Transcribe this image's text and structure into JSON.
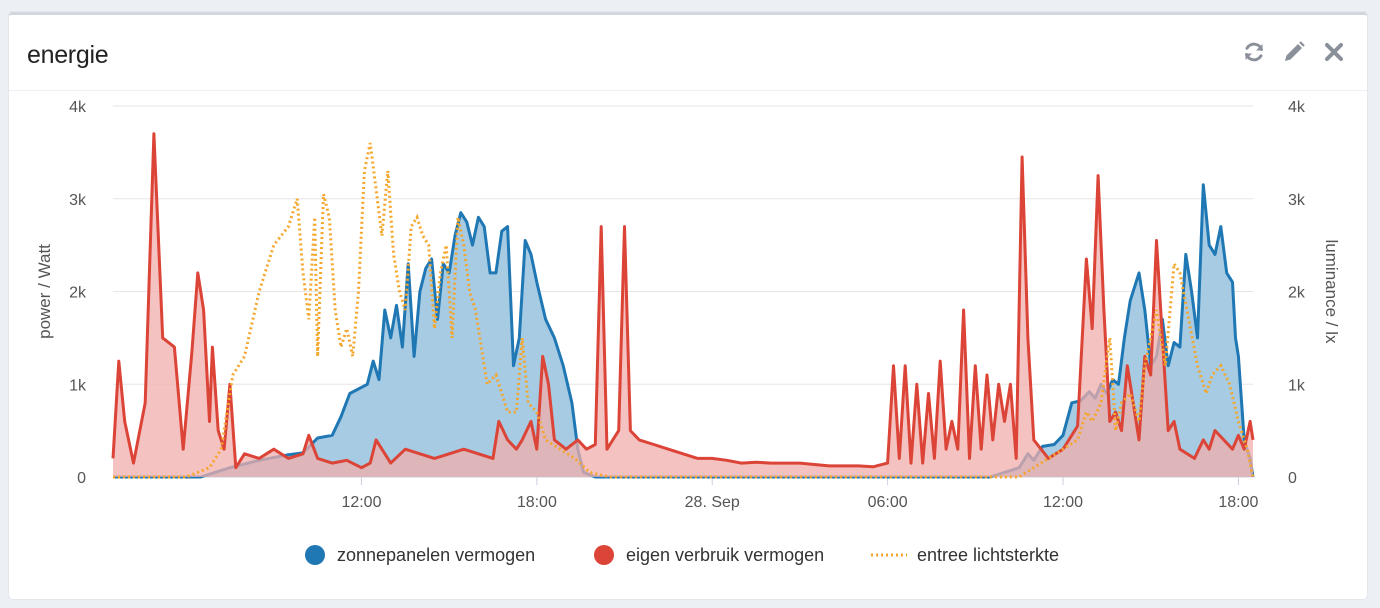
{
  "widget": {
    "title": "energie",
    "tools": [
      "refresh-icon",
      "pencil-icon",
      "close-icon"
    ]
  },
  "chart_data": {
    "type": "area",
    "x_tick_labels": [
      "12:00",
      "18:00",
      "28. Sep",
      "06:00",
      "12:00",
      "18:00"
    ],
    "x_tick_hours": [
      12,
      18,
      24,
      30,
      36,
      42
    ],
    "x_range_hours": [
      3.5,
      42.5
    ],
    "left_axis": {
      "title": "power / Watt",
      "range": [
        0,
        4000
      ],
      "ticks": [
        "0",
        "1k",
        "2k",
        "3k",
        "4k"
      ]
    },
    "right_axis": {
      "title": "luminance / lx",
      "range": [
        0,
        4000
      ],
      "ticks": [
        "0",
        "1k",
        "2k",
        "3k",
        "4k"
      ]
    },
    "grid": true,
    "legend_position": "bottom",
    "series": [
      {
        "name": "zonnepanelen vermogen",
        "color": "#1f77b4",
        "fill": "#a6cbe3",
        "style": "area",
        "axis": "left",
        "points": [
          [
            3.5,
            0
          ],
          [
            5.0,
            0
          ],
          [
            6.5,
            0
          ],
          [
            7.5,
            100
          ],
          [
            8.5,
            180
          ],
          [
            9.5,
            240
          ],
          [
            10.0,
            260
          ],
          [
            10.5,
            420
          ],
          [
            11.0,
            450
          ],
          [
            11.3,
            650
          ],
          [
            11.6,
            900
          ],
          [
            11.9,
            950
          ],
          [
            12.2,
            1000
          ],
          [
            12.4,
            1250
          ],
          [
            12.6,
            1050
          ],
          [
            12.8,
            1800
          ],
          [
            13.0,
            1500
          ],
          [
            13.2,
            1850
          ],
          [
            13.4,
            1400
          ],
          [
            13.6,
            2300
          ],
          [
            13.8,
            1300
          ],
          [
            14.0,
            2000
          ],
          [
            14.2,
            2250
          ],
          [
            14.4,
            2350
          ],
          [
            14.6,
            1700
          ],
          [
            14.8,
            2300
          ],
          [
            15.0,
            2200
          ],
          [
            15.2,
            2600
          ],
          [
            15.4,
            2850
          ],
          [
            15.6,
            2750
          ],
          [
            15.8,
            2500
          ],
          [
            16.0,
            2800
          ],
          [
            16.2,
            2700
          ],
          [
            16.4,
            2200
          ],
          [
            16.6,
            2200
          ],
          [
            16.8,
            2650
          ],
          [
            17.0,
            2700
          ],
          [
            17.2,
            1200
          ],
          [
            17.4,
            1500
          ],
          [
            17.6,
            2550
          ],
          [
            17.8,
            2400
          ],
          [
            18.0,
            2100
          ],
          [
            18.3,
            1700
          ],
          [
            18.6,
            1500
          ],
          [
            18.9,
            1200
          ],
          [
            19.2,
            800
          ],
          [
            19.4,
            300
          ],
          [
            19.6,
            50
          ],
          [
            20.0,
            0
          ],
          [
            22.0,
            0
          ],
          [
            25.0,
            0
          ],
          [
            28.0,
            0
          ],
          [
            31.0,
            0
          ],
          [
            33.5,
            0
          ],
          [
            34.5,
            100
          ],
          [
            34.8,
            250
          ],
          [
            35.0,
            180
          ],
          [
            35.3,
            330
          ],
          [
            35.7,
            350
          ],
          [
            36.0,
            450
          ],
          [
            36.3,
            800
          ],
          [
            36.6,
            820
          ],
          [
            36.9,
            920
          ],
          [
            37.1,
            850
          ],
          [
            37.3,
            1000
          ],
          [
            37.5,
            900
          ],
          [
            37.7,
            1050
          ],
          [
            37.9,
            1000
          ],
          [
            38.1,
            1500
          ],
          [
            38.3,
            1900
          ],
          [
            38.6,
            2200
          ],
          [
            38.8,
            1800
          ],
          [
            39.0,
            1200
          ],
          [
            39.2,
            1300
          ],
          [
            39.4,
            1700
          ],
          [
            39.6,
            1200
          ],
          [
            39.8,
            1450
          ],
          [
            40.0,
            1400
          ],
          [
            40.2,
            2400
          ],
          [
            40.4,
            2000
          ],
          [
            40.6,
            1500
          ],
          [
            40.8,
            3150
          ],
          [
            41.0,
            2500
          ],
          [
            41.2,
            2400
          ],
          [
            41.4,
            2700
          ],
          [
            41.6,
            2200
          ],
          [
            41.8,
            2100
          ],
          [
            41.9,
            1500
          ],
          [
            42.0,
            1300
          ],
          [
            42.2,
            400
          ],
          [
            42.4,
            200
          ],
          [
            42.5,
            0
          ]
        ]
      },
      {
        "name": "eigen verbruik vermogen",
        "color": "#db4437",
        "fill": "#f0aeab",
        "style": "area",
        "axis": "left",
        "points": [
          [
            3.5,
            200
          ],
          [
            3.7,
            1250
          ],
          [
            3.9,
            600
          ],
          [
            4.2,
            150
          ],
          [
            4.6,
            800
          ],
          [
            4.9,
            3700
          ],
          [
            5.2,
            1500
          ],
          [
            5.6,
            1400
          ],
          [
            5.9,
            300
          ],
          [
            6.2,
            1350
          ],
          [
            6.4,
            2200
          ],
          [
            6.6,
            1800
          ],
          [
            6.8,
            600
          ],
          [
            6.9,
            1400
          ],
          [
            7.1,
            500
          ],
          [
            7.3,
            300
          ],
          [
            7.5,
            1000
          ],
          [
            7.7,
            100
          ],
          [
            8.0,
            250
          ],
          [
            8.5,
            200
          ],
          [
            9.0,
            300
          ],
          [
            9.5,
            200
          ],
          [
            10.0,
            250
          ],
          [
            10.2,
            450
          ],
          [
            10.5,
            200
          ],
          [
            11.0,
            150
          ],
          [
            11.5,
            180
          ],
          [
            12.0,
            100
          ],
          [
            12.3,
            150
          ],
          [
            12.5,
            400
          ],
          [
            13.0,
            150
          ],
          [
            13.5,
            300
          ],
          [
            14.0,
            250
          ],
          [
            14.5,
            200
          ],
          [
            15.0,
            250
          ],
          [
            15.5,
            300
          ],
          [
            16.0,
            250
          ],
          [
            16.5,
            200
          ],
          [
            16.7,
            600
          ],
          [
            17.0,
            400
          ],
          [
            17.3,
            300
          ],
          [
            17.5,
            400
          ],
          [
            17.8,
            600
          ],
          [
            18.0,
            300
          ],
          [
            18.2,
            1300
          ],
          [
            18.4,
            1000
          ],
          [
            18.6,
            400
          ],
          [
            19.0,
            300
          ],
          [
            19.4,
            400
          ],
          [
            19.7,
            300
          ],
          [
            20.0,
            350
          ],
          [
            20.2,
            2700
          ],
          [
            20.4,
            300
          ],
          [
            20.8,
            500
          ],
          [
            21.0,
            2700
          ],
          [
            21.2,
            500
          ],
          [
            21.5,
            400
          ],
          [
            22.0,
            350
          ],
          [
            22.5,
            300
          ],
          [
            23.0,
            250
          ],
          [
            23.5,
            200
          ],
          [
            24.0,
            200
          ],
          [
            24.5,
            180
          ],
          [
            25.0,
            150
          ],
          [
            25.5,
            160
          ],
          [
            26.0,
            150
          ],
          [
            27.0,
            150
          ],
          [
            28.0,
            120
          ],
          [
            29.0,
            120
          ],
          [
            29.5,
            110
          ],
          [
            30.0,
            150
          ],
          [
            30.2,
            1200
          ],
          [
            30.4,
            200
          ],
          [
            30.6,
            1200
          ],
          [
            30.8,
            150
          ],
          [
            31.0,
            1000
          ],
          [
            31.2,
            150
          ],
          [
            31.4,
            900
          ],
          [
            31.6,
            200
          ],
          [
            31.8,
            1250
          ],
          [
            32.0,
            300
          ],
          [
            32.2,
            600
          ],
          [
            32.4,
            300
          ],
          [
            32.6,
            1800
          ],
          [
            32.8,
            200
          ],
          [
            33.0,
            1200
          ],
          [
            33.2,
            300
          ],
          [
            33.4,
            1100
          ],
          [
            33.6,
            400
          ],
          [
            33.8,
            1000
          ],
          [
            34.0,
            600
          ],
          [
            34.2,
            1000
          ],
          [
            34.4,
            200
          ],
          [
            34.6,
            3450
          ],
          [
            34.8,
            1500
          ],
          [
            35.0,
            400
          ],
          [
            35.5,
            200
          ],
          [
            36.0,
            300
          ],
          [
            36.5,
            550
          ],
          [
            36.8,
            2350
          ],
          [
            37.0,
            1600
          ],
          [
            37.2,
            3250
          ],
          [
            37.4,
            1800
          ],
          [
            37.6,
            600
          ],
          [
            37.8,
            700
          ],
          [
            38.0,
            500
          ],
          [
            38.2,
            1200
          ],
          [
            38.4,
            800
          ],
          [
            38.6,
            400
          ],
          [
            38.8,
            1300
          ],
          [
            39.0,
            1100
          ],
          [
            39.2,
            2550
          ],
          [
            39.4,
            1500
          ],
          [
            39.6,
            500
          ],
          [
            39.8,
            600
          ],
          [
            40.0,
            300
          ],
          [
            40.5,
            200
          ],
          [
            40.8,
            400
          ],
          [
            41.0,
            300
          ],
          [
            41.2,
            500
          ],
          [
            41.5,
            400
          ],
          [
            41.8,
            300
          ],
          [
            42.0,
            450
          ],
          [
            42.2,
            300
          ],
          [
            42.4,
            600
          ],
          [
            42.5,
            400
          ]
        ]
      },
      {
        "name": "entree lichtsterkte",
        "color": "#f5a62b",
        "style": "dotted",
        "axis": "right",
        "points": [
          [
            3.5,
            0
          ],
          [
            5.0,
            0
          ],
          [
            6.0,
            0
          ],
          [
            6.8,
            100
          ],
          [
            7.2,
            300
          ],
          [
            7.6,
            1100
          ],
          [
            8.0,
            1300
          ],
          [
            8.5,
            2000
          ],
          [
            9.0,
            2500
          ],
          [
            9.5,
            2700
          ],
          [
            9.8,
            3000
          ],
          [
            10.0,
            2200
          ],
          [
            10.2,
            1700
          ],
          [
            10.4,
            2800
          ],
          [
            10.5,
            1300
          ],
          [
            10.7,
            3050
          ],
          [
            10.9,
            2800
          ],
          [
            11.1,
            1800
          ],
          [
            11.3,
            1400
          ],
          [
            11.5,
            1600
          ],
          [
            11.7,
            1300
          ],
          [
            11.9,
            2000
          ],
          [
            12.1,
            3300
          ],
          [
            12.3,
            3600
          ],
          [
            12.5,
            3100
          ],
          [
            12.7,
            2600
          ],
          [
            12.9,
            3300
          ],
          [
            13.1,
            2400
          ],
          [
            13.3,
            2000
          ],
          [
            13.5,
            1800
          ],
          [
            13.7,
            2700
          ],
          [
            13.9,
            2800
          ],
          [
            14.1,
            2600
          ],
          [
            14.3,
            2500
          ],
          [
            14.5,
            1600
          ],
          [
            14.7,
            2200
          ],
          [
            14.9,
            2500
          ],
          [
            15.1,
            1500
          ],
          [
            15.3,
            2800
          ],
          [
            15.5,
            2500
          ],
          [
            15.7,
            2000
          ],
          [
            15.9,
            1800
          ],
          [
            16.1,
            1400
          ],
          [
            16.3,
            1000
          ],
          [
            16.6,
            1100
          ],
          [
            16.8,
            900
          ],
          [
            17.0,
            700
          ],
          [
            17.3,
            700
          ],
          [
            17.5,
            1500
          ],
          [
            17.7,
            800
          ],
          [
            18.0,
            700
          ],
          [
            18.3,
            400
          ],
          [
            18.8,
            300
          ],
          [
            19.3,
            200
          ],
          [
            19.8,
            50
          ],
          [
            20.5,
            0
          ],
          [
            26.0,
            0
          ],
          [
            32.0,
            0
          ],
          [
            34.5,
            0
          ],
          [
            35.0,
            100
          ],
          [
            35.5,
            200
          ],
          [
            36.0,
            300
          ],
          [
            36.5,
            400
          ],
          [
            36.8,
            700
          ],
          [
            37.0,
            600
          ],
          [
            37.3,
            800
          ],
          [
            37.6,
            1500
          ],
          [
            37.8,
            500
          ],
          [
            38.0,
            800
          ],
          [
            38.3,
            900
          ],
          [
            38.6,
            600
          ],
          [
            38.8,
            1200
          ],
          [
            39.0,
            1500
          ],
          [
            39.2,
            1800
          ],
          [
            39.5,
            1200
          ],
          [
            39.8,
            2300
          ],
          [
            40.0,
            2200
          ],
          [
            40.3,
            1700
          ],
          [
            40.6,
            1200
          ],
          [
            40.9,
            900
          ],
          [
            41.1,
            1100
          ],
          [
            41.4,
            1200
          ],
          [
            41.7,
            1000
          ],
          [
            42.0,
            600
          ],
          [
            42.3,
            300
          ],
          [
            42.5,
            0
          ]
        ]
      }
    ]
  }
}
